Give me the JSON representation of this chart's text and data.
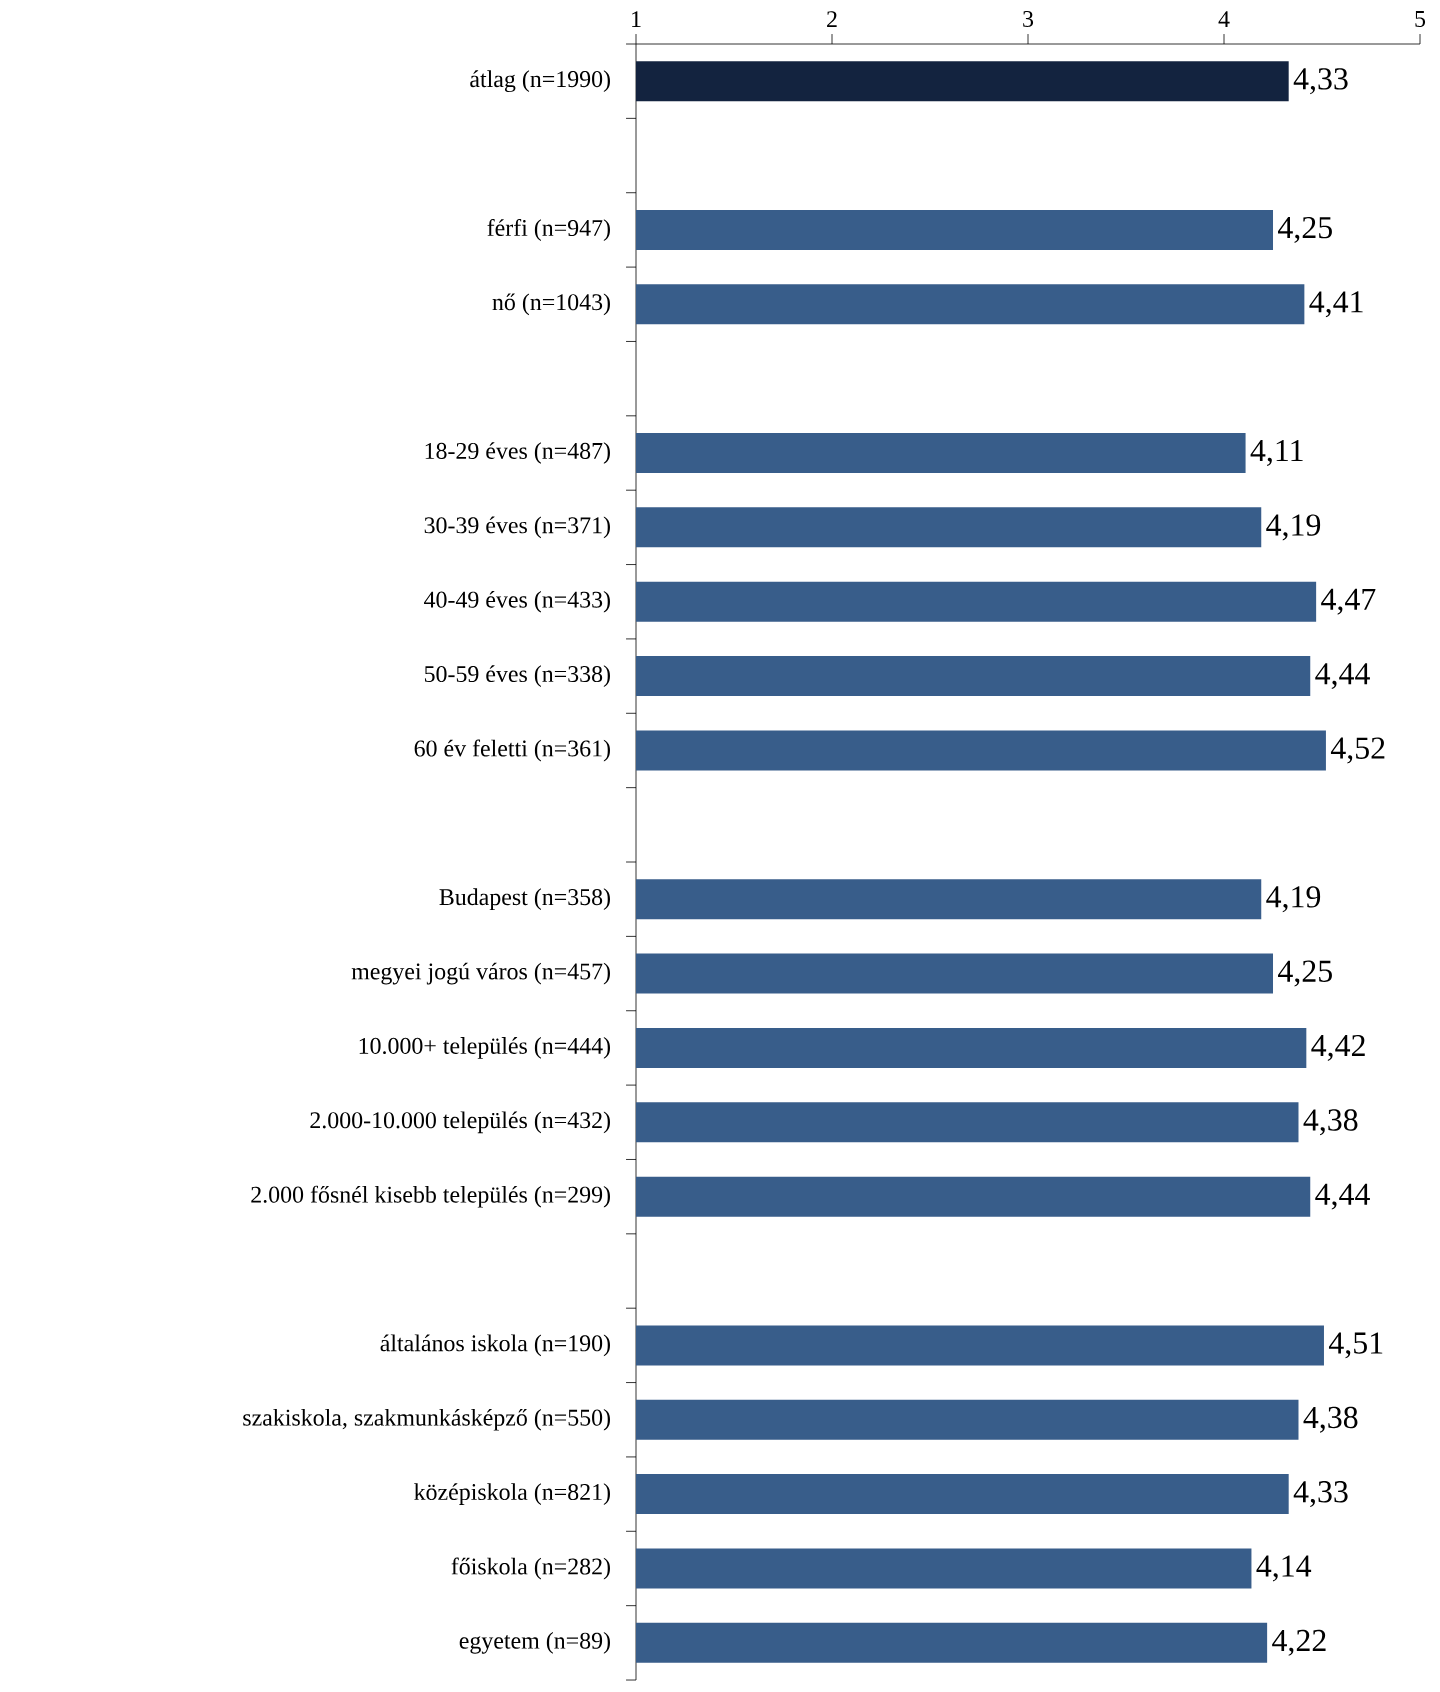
{
  "chart_data": {
    "type": "bar",
    "orientation": "horizontal",
    "categories": [
      "átlag (n=1990)",
      null,
      "férfi (n=947)",
      "nő (n=1043)",
      null,
      "18-29 éves (n=487)",
      "30-39 éves (n=371)",
      "40-49 éves (n=433)",
      "50-59 éves (n=338)",
      "60 év feletti (n=361)",
      null,
      "Budapest (n=358)",
      "megyei jogú város (n=457)",
      "10.000+ település (n=444)",
      "2.000-10.000 település (n=432)",
      "2.000 fősnél kisebb település (n=299)",
      null,
      "általános iskola (n=190)",
      "szakiskola, szakmunkásképző (n=550)",
      "középiskola (n=821)",
      "főiskola (n=282)",
      "egyetem (n=89)"
    ],
    "values": [
      4.33,
      null,
      4.25,
      4.41,
      null,
      4.11,
      4.19,
      4.47,
      4.44,
      4.52,
      null,
      4.19,
      4.25,
      4.42,
      4.38,
      4.44,
      null,
      4.51,
      4.38,
      4.33,
      4.14,
      4.22
    ],
    "value_labels": [
      "4,33",
      null,
      "4,25",
      "4,41",
      null,
      "4,11",
      "4,19",
      "4,47",
      "4,44",
      "4,52",
      null,
      "4,19",
      "4,25",
      "4,42",
      "4,38",
      "4,44",
      null,
      "4,51",
      "4,38",
      "4,33",
      "4,14",
      "4,22"
    ],
    "colors": [
      "#13233f",
      "#385d8a",
      "#385d8a",
      "#385d8a",
      "#385d8a",
      "#385d8a",
      "#385d8a",
      "#385d8a",
      "#385d8a",
      "#385d8a",
      "#385d8a",
      "#385d8a",
      "#385d8a",
      "#385d8a",
      "#385d8a",
      "#385d8a",
      "#385d8a",
      "#385d8a",
      "#385d8a",
      "#385d8a",
      "#385d8a",
      "#385d8a"
    ],
    "xlim": [
      1,
      5
    ],
    "xticks": [
      1,
      2,
      3,
      4,
      5
    ],
    "grid": false
  }
}
